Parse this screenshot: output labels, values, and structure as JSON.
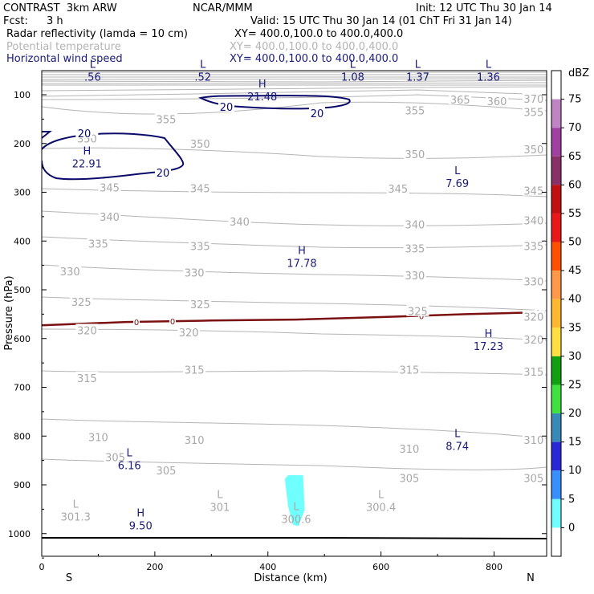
{
  "header": {
    "model": "CONTRAST  3km ARW",
    "org": "NCAR/MMM",
    "init": "Init: 12 UTC Thu 30 Jan 14",
    "fcst_label": "Fcst:",
    "fcst_value": "3 h",
    "valid": "Valid: 15 UTC Thu 30 Jan 14 (01 ChT Fri 31 Jan 14)"
  },
  "fields": [
    {
      "name": "Radar reflectivity (lamda = 10 cm)",
      "xy": "XY= 400.0,100.0 to 400.0,400.0",
      "color": "#000000"
    },
    {
      "name": "Potential temperature",
      "xy": "XY= 400.0,100.0 to 400.0,400.0",
      "color": "#b4b4b4"
    },
    {
      "name": "Horizontal wind speed",
      "xy": "XY= 400.0,100.0 to 400.0,400.0",
      "color": "#1a1a7a"
    }
  ],
  "chart_data": {
    "type": "cross-section",
    "xlabel": "Distance (km)",
    "ylabel": "Pressure (hPa)",
    "xlim": [
      0,
      890
    ],
    "ylim": [
      1050,
      45
    ],
    "x_ticks": [
      0,
      200,
      400,
      600,
      800
    ],
    "y_ticks": [
      100,
      200,
      300,
      400,
      500,
      600,
      700,
      800,
      900,
      1000
    ],
    "left_end_label": "S",
    "right_end_label": "N",
    "theta_labels": [
      {
        "text": "370",
        "x": 870,
        "p": 108
      },
      {
        "text": "365",
        "x": 740,
        "p": 110
      },
      {
        "text": "360",
        "x": 805,
        "p": 113
      },
      {
        "text": "355",
        "x": 220,
        "p": 150
      },
      {
        "text": "355",
        "x": 660,
        "p": 132
      },
      {
        "text": "355",
        "x": 870,
        "p": 135
      },
      {
        "text": "350",
        "x": 80,
        "p": 190
      },
      {
        "text": "350",
        "x": 280,
        "p": 200
      },
      {
        "text": "350",
        "x": 660,
        "p": 222
      },
      {
        "text": "350",
        "x": 870,
        "p": 212
      },
      {
        "text": "345",
        "x": 120,
        "p": 290
      },
      {
        "text": "345",
        "x": 280,
        "p": 292
      },
      {
        "text": "345",
        "x": 630,
        "p": 293
      },
      {
        "text": "345",
        "x": 870,
        "p": 297
      },
      {
        "text": "340",
        "x": 120,
        "p": 350
      },
      {
        "text": "340",
        "x": 350,
        "p": 360
      },
      {
        "text": "340",
        "x": 660,
        "p": 366
      },
      {
        "text": "340",
        "x": 870,
        "p": 358
      },
      {
        "text": "335",
        "x": 100,
        "p": 405
      },
      {
        "text": "335",
        "x": 280,
        "p": 410
      },
      {
        "text": "335",
        "x": 660,
        "p": 415
      },
      {
        "text": "335",
        "x": 870,
        "p": 410
      },
      {
        "text": "330",
        "x": 50,
        "p": 462
      },
      {
        "text": "330",
        "x": 270,
        "p": 465
      },
      {
        "text": "330",
        "x": 660,
        "p": 470
      },
      {
        "text": "330",
        "x": 870,
        "p": 483
      },
      {
        "text": "325",
        "x": 70,
        "p": 525
      },
      {
        "text": "325",
        "x": 280,
        "p": 530
      },
      {
        "text": "325",
        "x": 665,
        "p": 544
      },
      {
        "text": "320",
        "x": 80,
        "p": 583
      },
      {
        "text": "320",
        "x": 260,
        "p": 587
      },
      {
        "text": "320",
        "x": 870,
        "p": 602
      },
      {
        "text": "320",
        "x": 870,
        "p": 555
      },
      {
        "text": "315",
        "x": 80,
        "p": 681
      },
      {
        "text": "315",
        "x": 270,
        "p": 664
      },
      {
        "text": "315",
        "x": 650,
        "p": 664
      },
      {
        "text": "315",
        "x": 870,
        "p": 668
      },
      {
        "text": "310",
        "x": 100,
        "p": 802
      },
      {
        "text": "310",
        "x": 270,
        "p": 808
      },
      {
        "text": "310",
        "x": 650,
        "p": 826
      },
      {
        "text": "310",
        "x": 870,
        "p": 808
      },
      {
        "text": "305",
        "x": 130,
        "p": 843
      },
      {
        "text": "305",
        "x": 220,
        "p": 870
      },
      {
        "text": "305",
        "x": 650,
        "p": 886
      },
      {
        "text": "305",
        "x": 870,
        "p": 886
      }
    ],
    "theta_extrema": [
      {
        "kind": "L",
        "value": "301.3",
        "x": 60,
        "p": 960
      },
      {
        "kind": "L",
        "value": "301",
        "x": 315,
        "p": 940
      },
      {
        "kind": "L",
        "value": "300.6",
        "x": 450,
        "p": 965
      },
      {
        "kind": "L",
        "value": "300.4",
        "x": 600,
        "p": 940
      }
    ],
    "wind_speed": {
      "contour_interval": 20,
      "contour_label": "20",
      "extrema": [
        {
          "kind": "L",
          "value": ".56",
          "x": 90,
          "p": 58
        },
        {
          "kind": "L",
          "value": ".52",
          "x": 285,
          "p": 58
        },
        {
          "kind": "H",
          "value": "21.48",
          "x": 390,
          "p": 98
        },
        {
          "kind": "L",
          "value": "1.08",
          "x": 550,
          "p": 58
        },
        {
          "kind": "L",
          "value": "1.37",
          "x": 665,
          "p": 58
        },
        {
          "kind": "L",
          "value": "1.36",
          "x": 790,
          "p": 58
        },
        {
          "kind": "H",
          "value": "22.91",
          "x": 80,
          "p": 236
        },
        {
          "kind": "L",
          "value": "7.69",
          "x": 735,
          "p": 276
        },
        {
          "kind": "H",
          "value": "17.78",
          "x": 460,
          "p": 440
        },
        {
          "kind": "H",
          "value": "17.23",
          "x": 790,
          "p": 610
        },
        {
          "kind": "L",
          "value": "8.74",
          "x": 735,
          "p": 815
        },
        {
          "kind": "L",
          "value": "6.16",
          "x": 155,
          "p": 855
        },
        {
          "kind": "H",
          "value": "9.50",
          "x": 175,
          "p": 978
        }
      ]
    },
    "freezing_line": {
      "label": "0",
      "color": "#7a1010",
      "points": [
        [
          0,
          573
        ],
        [
          150,
          566
        ],
        [
          300,
          563
        ],
        [
          450,
          561
        ],
        [
          600,
          556
        ],
        [
          750,
          550
        ],
        [
          890,
          546
        ]
      ]
    },
    "reflectivity_cells": [
      {
        "dbz_class": "5-10",
        "x_range": [
          430,
          465
        ],
        "p_range": [
          880,
          985
        ]
      }
    ],
    "colorbar": {
      "unit": "dBZ",
      "levels": [
        "75",
        "70",
        "65",
        "60",
        "55",
        "50",
        "45",
        "40",
        "35",
        "30",
        "25",
        "20",
        "15",
        "10",
        "5",
        "0"
      ],
      "colors": [
        "#ffffff",
        "#c084c4",
        "#a040a0",
        "#8a3068",
        "#c01010",
        "#e81818",
        "#ff5000",
        "#ff9848",
        "#ffb830",
        "#ffe040",
        "#10a010",
        "#40e040",
        "#3888b8",
        "#2828d8",
        "#3890ff",
        "#70ffff",
        "#ffffff"
      ]
    }
  }
}
